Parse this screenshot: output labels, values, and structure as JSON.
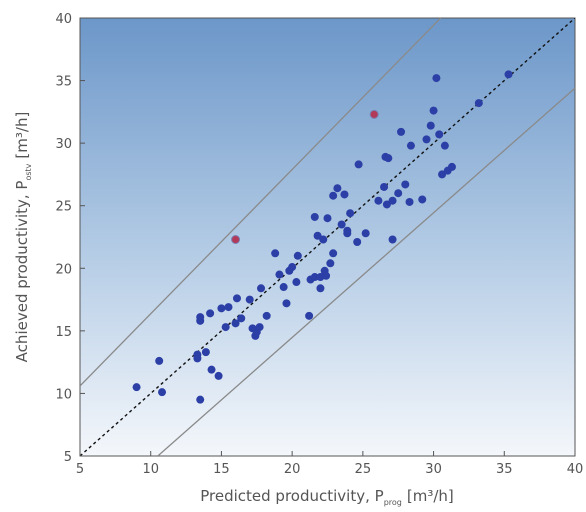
{
  "chart_data": {
    "type": "scatter",
    "xlabel": {
      "main": "Predicted productivity, P",
      "sub": "prog",
      "unit": "[m³/h]"
    },
    "ylabel": {
      "main": "Achieved productivity, P",
      "sub": "ostv",
      "unit": "[m³/h]"
    },
    "xlim": [
      5,
      40
    ],
    "ylim": [
      5,
      40
    ],
    "xticks": [
      5,
      10,
      15,
      20,
      25,
      30,
      35,
      40
    ],
    "yticks": [
      5,
      10,
      15,
      20,
      25,
      30,
      35,
      40
    ],
    "grid": false,
    "reference_lines": [
      {
        "style": "dashed",
        "color": "#111111",
        "x": [
          5,
          40
        ],
        "y": [
          5,
          40
        ]
      },
      {
        "style": "solid",
        "color": "#8a8a8a",
        "x": [
          5,
          30.5
        ],
        "y": [
          10.6,
          40
        ]
      },
      {
        "style": "solid",
        "color": "#8a8a8a",
        "x": [
          10.5,
          40
        ],
        "y": [
          5,
          34.4
        ]
      }
    ],
    "series": [
      {
        "color": "#2b3fa6",
        "points": [
          [
            9,
            10.5
          ],
          [
            10.6,
            12.6
          ],
          [
            10.8,
            10.1
          ],
          [
            13.3,
            12.8
          ],
          [
            13.3,
            13.1
          ],
          [
            13.5,
            9.5
          ],
          [
            13.5,
            15.8
          ],
          [
            13.5,
            16.1
          ],
          [
            13.9,
            13.3
          ],
          [
            14.2,
            16.4
          ],
          [
            14.3,
            11.9
          ],
          [
            14.8,
            11.4
          ],
          [
            15,
            16.8
          ],
          [
            15.3,
            15.3
          ],
          [
            15.5,
            16.9
          ],
          [
            16,
            15.6
          ],
          [
            16.1,
            17.6
          ],
          [
            16.4,
            16
          ],
          [
            17,
            17.5
          ],
          [
            17.2,
            15.2
          ],
          [
            17.4,
            14.6
          ],
          [
            17.5,
            14.9
          ],
          [
            17.7,
            15.3
          ],
          [
            17.8,
            18.4
          ],
          [
            18.2,
            16.2
          ],
          [
            18.8,
            21.2
          ],
          [
            19.1,
            19.5
          ],
          [
            19.4,
            18.5
          ],
          [
            19.6,
            17.2
          ],
          [
            19.8,
            19.8
          ],
          [
            20,
            20.1
          ],
          [
            20.3,
            18.9
          ],
          [
            20.4,
            21
          ],
          [
            21.2,
            16.2
          ],
          [
            21.3,
            19.1
          ],
          [
            21.6,
            19.3
          ],
          [
            21.6,
            24.1
          ],
          [
            21.8,
            22.6
          ],
          [
            22,
            19.3
          ],
          [
            22,
            18.4
          ],
          [
            22.2,
            22.3
          ],
          [
            22.3,
            19.8
          ],
          [
            22.4,
            19.4
          ],
          [
            22.5,
            24
          ],
          [
            22.7,
            20.4
          ],
          [
            22.9,
            21.2
          ],
          [
            22.9,
            25.8
          ],
          [
            23.2,
            26.4
          ],
          [
            23.5,
            23.5
          ],
          [
            23.7,
            25.9
          ],
          [
            23.9,
            23
          ],
          [
            23.9,
            22.8
          ],
          [
            24.1,
            24.4
          ],
          [
            24.6,
            22.1
          ],
          [
            24.7,
            28.3
          ],
          [
            25.2,
            22.8
          ],
          [
            26.1,
            25.4
          ],
          [
            26.5,
            26.5
          ],
          [
            26.6,
            28.9
          ],
          [
            26.7,
            25.1
          ],
          [
            26.8,
            28.8
          ],
          [
            27.1,
            25.4
          ],
          [
            27.1,
            22.3
          ],
          [
            27.5,
            26
          ],
          [
            27.7,
            30.9
          ],
          [
            28,
            26.7
          ],
          [
            28.3,
            25.3
          ],
          [
            28.4,
            29.8
          ],
          [
            29.2,
            25.5
          ],
          [
            29.5,
            30.3
          ],
          [
            29.8,
            31.4
          ],
          [
            30,
            32.6
          ],
          [
            30.4,
            30.7
          ],
          [
            30.6,
            27.5
          ],
          [
            30.8,
            29.8
          ],
          [
            31,
            27.8
          ],
          [
            31.3,
            28.1
          ],
          [
            33.2,
            33.2
          ],
          [
            35.3,
            35.5
          ],
          [
            30.2,
            35.2
          ]
        ]
      },
      {
        "color": "#b23a58",
        "points": [
          [
            16,
            22.3
          ],
          [
            25.8,
            32.3
          ]
        ]
      }
    ]
  }
}
